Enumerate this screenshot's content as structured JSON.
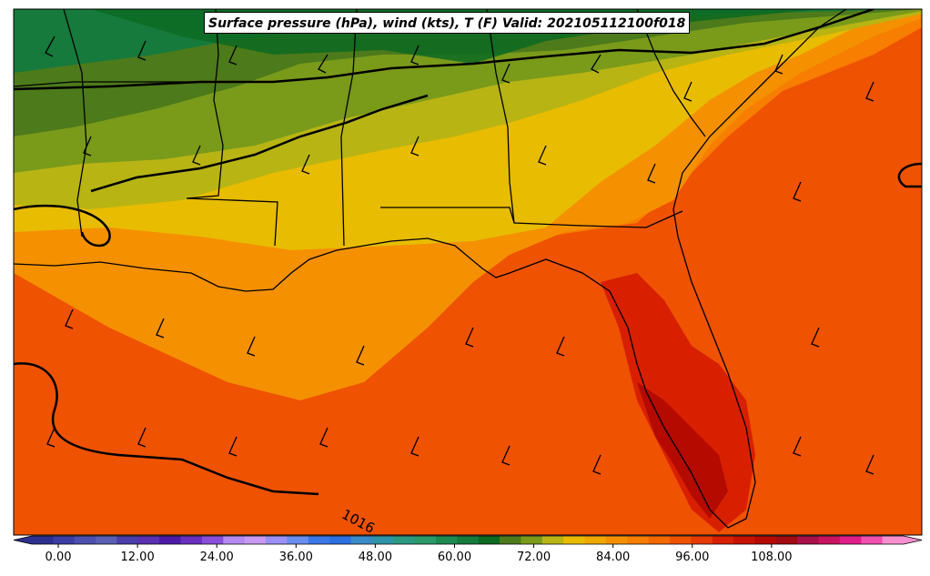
{
  "map": {
    "title": "Surface pressure (hPa), wind (kts), T (F) Valid: 202105112100f018",
    "contour_label": "1016"
  },
  "colorbar": {
    "min": -4,
    "max": 128,
    "step": 4,
    "ticks": [
      {
        "label": "0.00",
        "value": 0
      },
      {
        "label": "12.00",
        "value": 12
      },
      {
        "label": "24.00",
        "value": 24
      },
      {
        "label": "36.00",
        "value": 36
      },
      {
        "label": "48.00",
        "value": 48
      },
      {
        "label": "60.00",
        "value": 60
      },
      {
        "label": "72.00",
        "value": 72
      },
      {
        "label": "84.00",
        "value": 84
      },
      {
        "label": "96.00",
        "value": 96
      },
      {
        "label": "108.00",
        "value": 108
      }
    ],
    "colors": [
      "#2b2f8f",
      "#3a3ea3",
      "#4b4fae",
      "#5a5fb3",
      "#4a3da8",
      "#5a2fb0",
      "#4d1aa8",
      "#6a2fc0",
      "#8a4fd8",
      "#b58af0",
      "#c89af2",
      "#9a90f5",
      "#6a8df0",
      "#3a78e8",
      "#2d6fe0",
      "#3a8ac8",
      "#2f94a8",
      "#2c9a80",
      "#2a9a6a",
      "#1e8a4f",
      "#157a3c",
      "#0c6a22",
      "#4d7a1a",
      "#7a9a1a",
      "#b8b414",
      "#e8bc00",
      "#f0a800",
      "#f59000",
      "#f77e00",
      "#f46800",
      "#ef5200",
      "#e63a00",
      "#d82000",
      "#c81200",
      "#b40a00",
      "#a00a10",
      "#a8104a",
      "#c81460",
      "#e01e8a",
      "#f050b0",
      "#f890d0"
    ]
  },
  "colors": {
    "cold_dark_green": "#0c6a22",
    "green": "#157a3c",
    "olive": "#4d7a1a",
    "yellow_green": "#7a9a1a",
    "olive_yellow": "#b8b414",
    "yellow": "#e8bc00",
    "orange_light": "#f59000",
    "orange": "#f77e00",
    "orange_red": "#ef5200",
    "red": "#d82000",
    "dark_red": "#b40a00"
  }
}
